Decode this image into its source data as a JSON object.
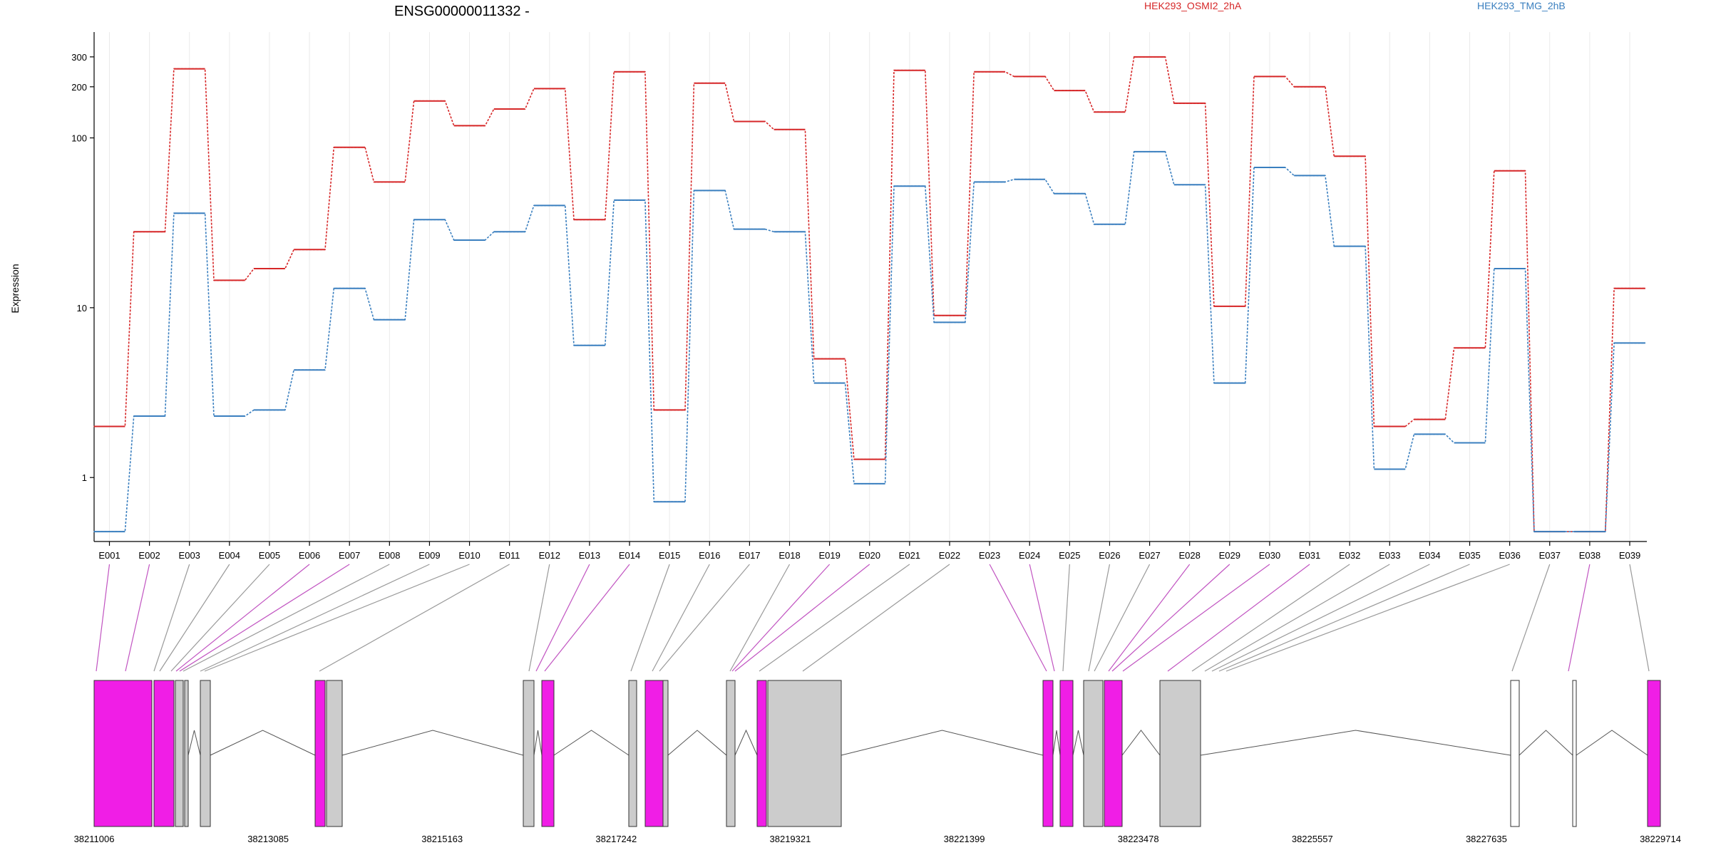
{
  "chart_data": {
    "type": "line",
    "title": "ENSG00000011332 -",
    "ylabel": "Expression",
    "yscale": "log",
    "ylim": [
      0.42,
      420
    ],
    "yticks": [
      1,
      10,
      100,
      200,
      300
    ],
    "ytick_labels": [
      "1",
      "10",
      "100",
      "200",
      "300"
    ],
    "grid": "vertical",
    "legend_position": "top-right",
    "categories": [
      "E001",
      "E002",
      "E003",
      "E004",
      "E005",
      "E006",
      "E007",
      "E008",
      "E009",
      "E010",
      "E011",
      "E012",
      "E013",
      "E014",
      "E015",
      "E016",
      "E017",
      "E018",
      "E019",
      "E020",
      "E021",
      "E022",
      "E023",
      "E024",
      "E025",
      "E026",
      "E027",
      "E028",
      "E029",
      "E030",
      "E031",
      "E032",
      "E033",
      "E034",
      "E035",
      "E036",
      "E037",
      "E038",
      "E039"
    ],
    "series": [
      {
        "name": "HEK293_OSMI2_2hA",
        "color": "#d62728",
        "values": [
          2.0,
          28,
          255,
          14.5,
          17,
          22,
          88,
          55,
          165,
          118,
          148,
          195,
          33,
          245,
          2.5,
          210,
          125,
          112,
          5.0,
          1.28,
          250,
          9.0,
          245,
          230,
          190,
          142,
          300,
          160,
          10.2,
          230,
          200,
          78,
          2.0,
          2.2,
          5.8,
          64,
          0.48,
          0.48,
          13
        ]
      },
      {
        "name": "HEK293_TMG_2hB",
        "color": "#3a7fbf",
        "values": [
          0.48,
          2.3,
          36,
          2.3,
          2.5,
          4.3,
          13,
          8.5,
          33,
          25,
          28,
          40,
          6.0,
          43,
          0.72,
          49,
          29,
          28,
          3.6,
          0.92,
          52,
          8.2,
          55,
          57,
          47,
          31,
          83,
          53,
          3.6,
          67,
          60,
          23,
          1.12,
          1.8,
          1.6,
          17,
          0.48,
          0.48,
          6.2
        ]
      }
    ],
    "gene_model": {
      "coordinate_labels": [
        "38211006",
        "38213085",
        "38215163",
        "38217242",
        "38219321",
        "38221399",
        "38223478",
        "38225557",
        "38227635",
        "38229714"
      ],
      "exon_colors": {
        "highlight": "#f01ee6",
        "plain": "#cccccc",
        "empty": "#ffffff"
      },
      "link_colors": {
        "highlight": "#c154c1",
        "plain": "#999999"
      }
    }
  }
}
